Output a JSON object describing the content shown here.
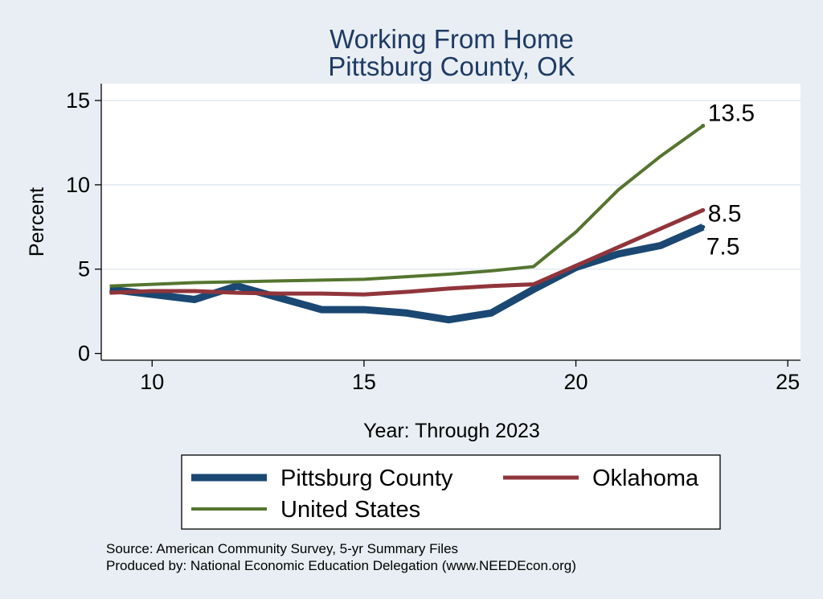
{
  "chart_data": {
    "type": "line",
    "title": [
      "Working From Home",
      "Pittsburg County, OK"
    ],
    "xlabel": "Year: Through 2023",
    "ylabel": "Percent",
    "xlim": [
      8.8,
      25.3
    ],
    "ylim": [
      -0.4,
      16.0
    ],
    "xticks": [
      10,
      15,
      20,
      25
    ],
    "yticks": [
      0,
      5,
      10,
      15
    ],
    "grid": "horizontal",
    "series": [
      {
        "name": "Pittsburg County",
        "color": "#1a4872",
        "width": "thick",
        "x": [
          9,
          10,
          11,
          12,
          13,
          14,
          15,
          16,
          17,
          18,
          19,
          20,
          21,
          22,
          23
        ],
        "y": [
          3.8,
          3.5,
          3.2,
          4.0,
          3.3,
          2.6,
          2.6,
          2.4,
          2.0,
          2.4,
          3.8,
          5.1,
          5.9,
          6.4,
          7.5
        ],
        "end_label": "7.5"
      },
      {
        "name": "Oklahoma",
        "color": "#90353b",
        "width": "medium",
        "x": [
          9,
          10,
          11,
          12,
          13,
          14,
          15,
          16,
          17,
          18,
          19,
          20,
          21,
          22,
          23
        ],
        "y": [
          3.6,
          3.7,
          3.7,
          3.6,
          3.55,
          3.55,
          3.5,
          3.65,
          3.85,
          4.0,
          4.1,
          5.2,
          6.3,
          7.4,
          8.5
        ],
        "end_label": "8.5"
      },
      {
        "name": "United States",
        "color": "#55752f",
        "width": "thin",
        "x": [
          9,
          10,
          11,
          12,
          13,
          14,
          15,
          16,
          17,
          18,
          19,
          20,
          21,
          22,
          23
        ],
        "y": [
          4.0,
          4.1,
          4.2,
          4.25,
          4.3,
          4.35,
          4.4,
          4.55,
          4.7,
          4.9,
          5.15,
          7.2,
          9.7,
          11.7,
          13.5
        ],
        "end_label": "13.5"
      }
    ],
    "legend": {
      "placement": "bottom",
      "entries": [
        "Pittsburg County",
        "Oklahoma",
        "United States"
      ]
    }
  },
  "notes": {
    "source": "Source: American Community Survey, 5-yr Summary Files",
    "produced_by": "Produced by: National Economic Education Delegation (www.NEEDEcon.org)"
  }
}
